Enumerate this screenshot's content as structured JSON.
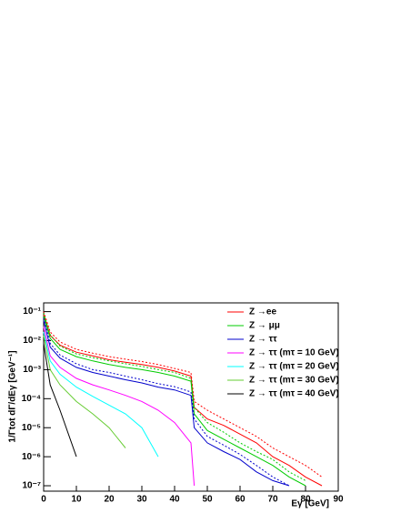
{
  "chart_data": {
    "type": "line",
    "xlabel": "Eγ [GeV]",
    "ylabel": "1/Γtot dΓ/dEγ [GeV⁻¹]",
    "x": [
      0,
      2,
      5,
      10,
      15,
      20,
      25,
      30,
      35,
      40,
      45,
      46,
      50,
      55,
      60,
      65,
      70,
      75,
      80,
      85
    ],
    "series": [
      {
        "name": "Z →ee",
        "color": "#ff0000",
        "values": [
          0.08,
          0.015,
          0.007,
          0.004,
          0.003,
          0.0022,
          0.0018,
          0.0015,
          0.0012,
          0.0009,
          0.0006,
          5e-05,
          2e-05,
          1.2e-05,
          6e-06,
          3e-06,
          1e-06,
          5e-07,
          2e-07,
          1e-07
        ]
      },
      {
        "name": "Z → μμ",
        "color": "#00cc00",
        "values": [
          0.07,
          0.012,
          0.005,
          0.0028,
          0.002,
          0.0015,
          0.0012,
          0.001,
          0.0008,
          0.0006,
          0.0004,
          3e-05,
          8e-06,
          4e-06,
          2e-06,
          1e-06,
          5e-07,
          2e-07,
          1e-07,
          null
        ]
      },
      {
        "name": "Z → ττ",
        "color": "#0000cc",
        "values": [
          0.05,
          0.006,
          0.0025,
          0.0012,
          0.0008,
          0.0006,
          0.00045,
          0.00035,
          0.00025,
          0.0002,
          0.00013,
          1e-05,
          3e-06,
          1.5e-06,
          8e-07,
          3e-07,
          1.5e-07,
          1e-07,
          null,
          null
        ]
      },
      {
        "name": "Z → ττ (mτ = 10 GeV)",
        "color": "#ff00ff",
        "values": [
          0.03,
          0.003,
          0.0012,
          0.0005,
          0.0003,
          0.0002,
          0.00013,
          8e-05,
          4e-05,
          1.5e-05,
          3e-06,
          1e-07,
          null,
          null,
          null,
          null,
          null,
          null,
          null,
          null
        ]
      },
      {
        "name": "Z → ττ (mτ = 20 GeV)",
        "color": "#00ffff",
        "values": [
          0.02,
          0.002,
          0.0007,
          0.00025,
          0.00012,
          6e-05,
          3e-05,
          1e-05,
          1e-06,
          null,
          null,
          null,
          null,
          null,
          null,
          null,
          null,
          null,
          null,
          null
        ]
      },
      {
        "name": "Z → ττ (mτ = 30 GeV)",
        "color": "#66cc33",
        "values": [
          0.015,
          0.001,
          0.0003,
          8e-05,
          3e-05,
          1e-05,
          2e-06,
          null,
          null,
          null,
          null,
          null,
          null,
          null,
          null,
          null,
          null,
          null,
          null,
          null
        ]
      },
      {
        "name": "Z → ττ (mτ = 40 GeV)",
        "color": "#000000",
        "values": [
          0.008,
          0.0003,
          4e-05,
          1e-06,
          null,
          null,
          null,
          null,
          null,
          null,
          null,
          null,
          null,
          null,
          null,
          null,
          null,
          null,
          null,
          null
        ]
      },
      {
        "color": "#ff0000",
        "dashed": true,
        "values": [
          0.1,
          0.02,
          0.009,
          0.005,
          0.0037,
          0.0028,
          0.0023,
          0.0019,
          0.0015,
          0.0011,
          0.0008,
          8e-05,
          4e-05,
          2e-05,
          1e-05,
          5e-06,
          2e-06,
          1e-06,
          5e-07,
          2e-07
        ]
      },
      {
        "color": "#00cc00",
        "dashed": true,
        "values": [
          0.09,
          0.016,
          0.0065,
          0.0035,
          0.0026,
          0.002,
          0.0016,
          0.0013,
          0.001,
          0.0008,
          0.0005,
          5e-05,
          1.5e-05,
          7e-06,
          3e-06,
          1.5e-06,
          8e-07,
          3e-07,
          1.5e-07,
          null
        ]
      },
      {
        "color": "#0000cc",
        "dashed": true,
        "values": [
          0.06,
          0.008,
          0.0032,
          0.0016,
          0.001,
          0.0008,
          0.0006,
          0.00045,
          0.00033,
          0.00026,
          0.00017,
          2e-05,
          5e-06,
          2.5e-06,
          1.2e-06,
          5e-07,
          2e-07,
          1e-07,
          null,
          null
        ]
      }
    ],
    "xlim": [
      0,
      90
    ],
    "xticks": [
      0,
      10,
      20,
      30,
      40,
      50,
      60,
      70,
      80,
      90
    ],
    "ylim": [
      6.5e-08,
      0.2
    ],
    "log_y": true,
    "yticks": [
      {
        "value": 1e-07,
        "label": "10⁻⁷"
      },
      {
        "value": 1e-06,
        "label": "10⁻⁶"
      },
      {
        "value": 1e-05,
        "label": "10⁻⁵"
      },
      {
        "value": 0.0001,
        "label": "10⁻⁴"
      },
      {
        "value": 0.001,
        "label": "10⁻³"
      },
      {
        "value": 0.01,
        "label": "10⁻²"
      },
      {
        "value": 0.1,
        "label": "10⁻¹"
      }
    ],
    "legend": "top-right"
  }
}
